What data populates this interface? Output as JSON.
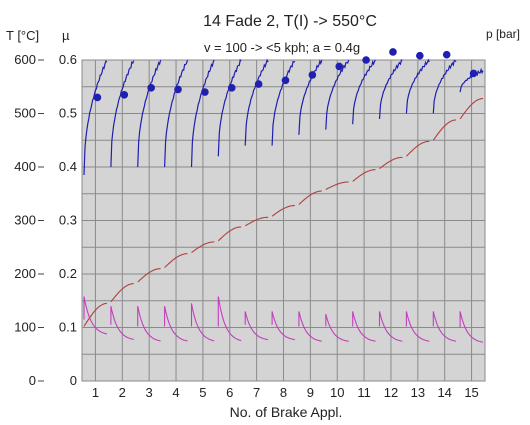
{
  "chart_data": {
    "type": "line",
    "title": "14 Fade 2, T(I) -> 550°C",
    "subtitle": "v = 100 -> <5 kph; a = 0.4g",
    "xlabel": "No. of Brake Appl.",
    "y_left_outer_label": "T [°C]",
    "y_left_inner_label": "µ",
    "y_right_label": "p [bar]",
    "categories": [
      "1",
      "2",
      "3",
      "4",
      "5",
      "6",
      "7",
      "8",
      "9",
      "10",
      "11",
      "12",
      "13",
      "14",
      "15"
    ],
    "xlim": [
      0.5,
      15.5
    ],
    "temperature_axis": {
      "ticks": [
        "0",
        "100",
        "200",
        "300",
        "400",
        "500",
        "600"
      ],
      "range": [
        0,
        600
      ]
    },
    "mu_axis": {
      "ticks": [
        "0",
        "0.1",
        "0.2",
        "0.3",
        "0.4",
        "0.5",
        "0.6"
      ],
      "range": [
        0,
        0.6
      ]
    },
    "grid": true,
    "series": [
      {
        "axis": "mu",
        "kind": "scatter",
        "x": [
          1,
          2,
          3,
          4,
          5,
          6,
          7,
          8,
          9,
          10,
          11,
          12,
          13,
          14,
          15
        ],
        "values": [
          0.53,
          0.535,
          0.548,
          0.545,
          0.54,
          0.548,
          0.555,
          0.562,
          0.572,
          0.588,
          0.6,
          0.615,
          0.608,
          0.61,
          0.575
        ]
      },
      {
        "axis": "mu",
        "kind": "line",
        "start": [
          0.385,
          0.4,
          0.4,
          0.4,
          0.4,
          0.42,
          0.44,
          0.44,
          0.46,
          0.47,
          0.48,
          0.49,
          0.5,
          0.5,
          0.54
        ],
        "end": [
          0.6,
          0.6,
          0.6,
          0.6,
          0.6,
          0.6,
          0.6,
          0.6,
          0.6,
          0.6,
          0.6,
          0.6,
          0.6,
          0.6,
          0.58
        ]
      },
      {
        "axis": "temperature",
        "kind": "line",
        "start": [
          102,
          148,
          185,
          212,
          240,
          262,
          290,
          308,
          330,
          358,
          373,
          397,
          420,
          450,
          490
        ],
        "end": [
          145,
          182,
          210,
          238,
          260,
          288,
          306,
          328,
          355,
          372,
          395,
          418,
          448,
          488,
          528
        ]
      },
      {
        "axis": "temperature",
        "kind": "line",
        "start": [
          158,
          140,
          140,
          140,
          145,
          158,
          130,
          130,
          130,
          125,
          130,
          130,
          130,
          130,
          130
        ],
        "end": [
          85,
          75,
          72,
          72,
          72,
          72,
          75,
          75,
          72,
          72,
          72,
          72,
          72,
          72,
          70
        ]
      }
    ],
    "colors": {
      "mu": "#1f1fb0",
      "temperature": "#b04040",
      "pressure": "#c040c0",
      "plot_bg": "#d4d4d4",
      "grid": "#8a8a8a"
    }
  }
}
